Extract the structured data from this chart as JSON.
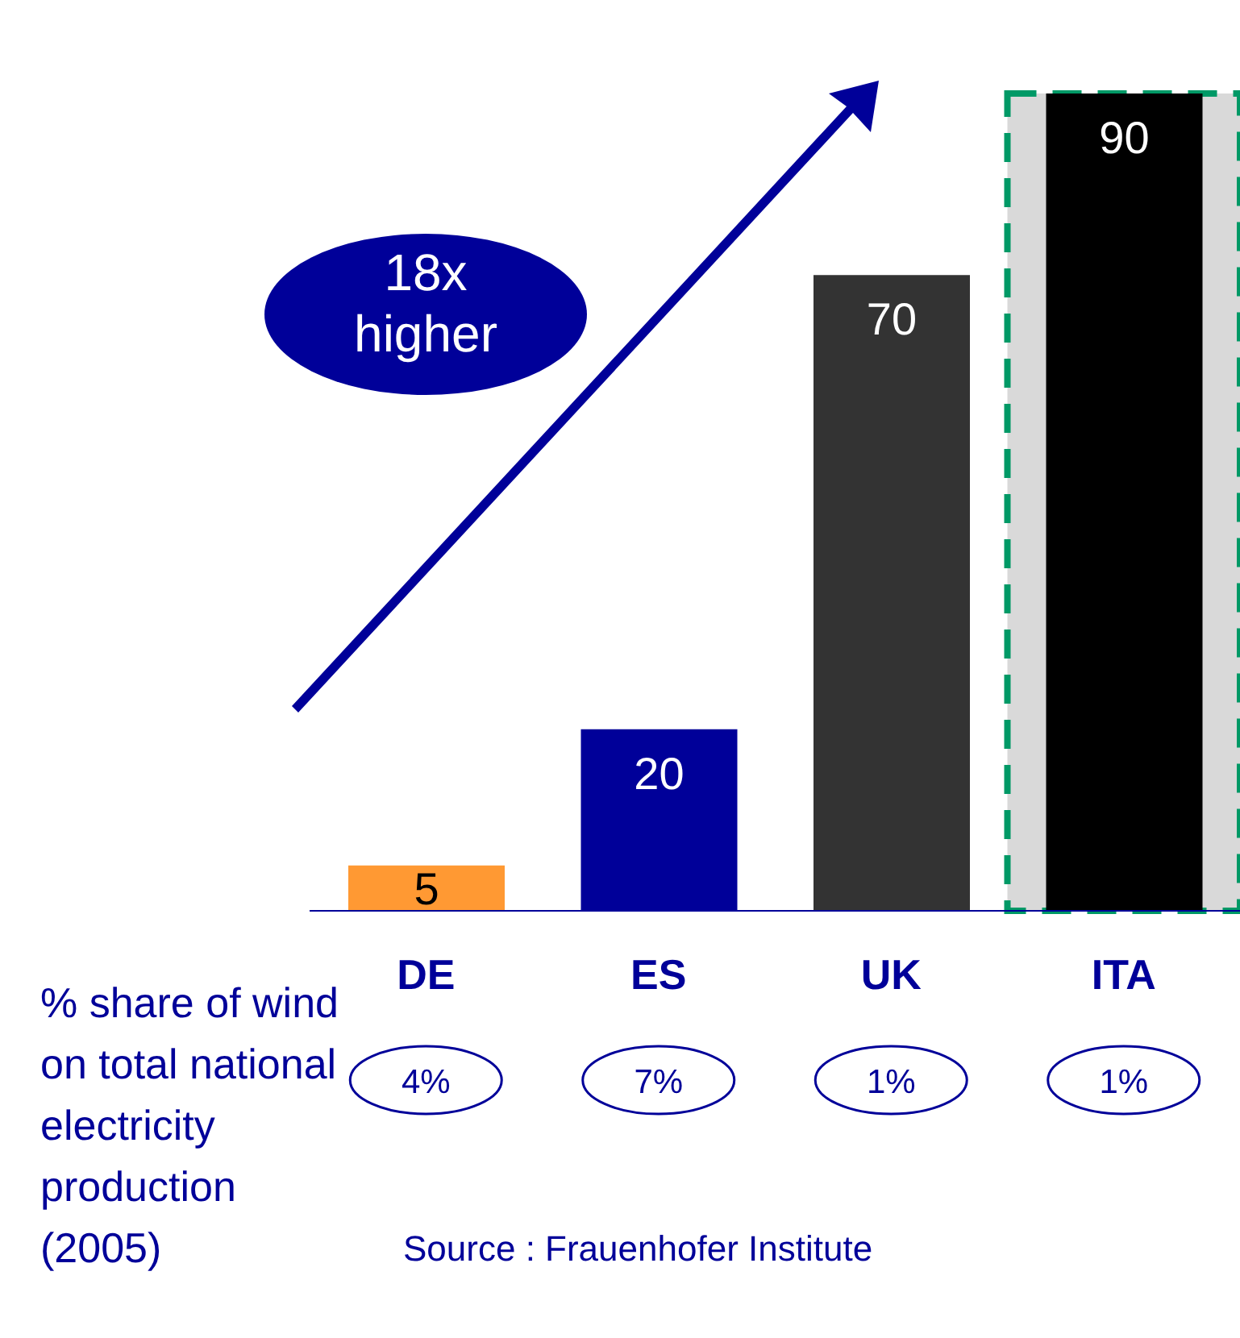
{
  "chart_data": {
    "type": "bar",
    "categories": [
      "DE",
      "ES",
      "UK",
      "ITA"
    ],
    "values": [
      5,
      20,
      70,
      90
    ],
    "colors": [
      "#ff9933",
      "#000099",
      "#333333",
      "#000000"
    ],
    "data_labels": true,
    "bands": [
      {
        "axis": "x",
        "from": "ITA",
        "to": "ITA",
        "color": "#d9d9d9"
      }
    ],
    "annotations": [
      "18x higher",
      "4%",
      "7%",
      "1%",
      "1%",
      "% share of wind on total national electricity production (2005)",
      "Source : Frauenhofer Institute"
    ]
  }
}
